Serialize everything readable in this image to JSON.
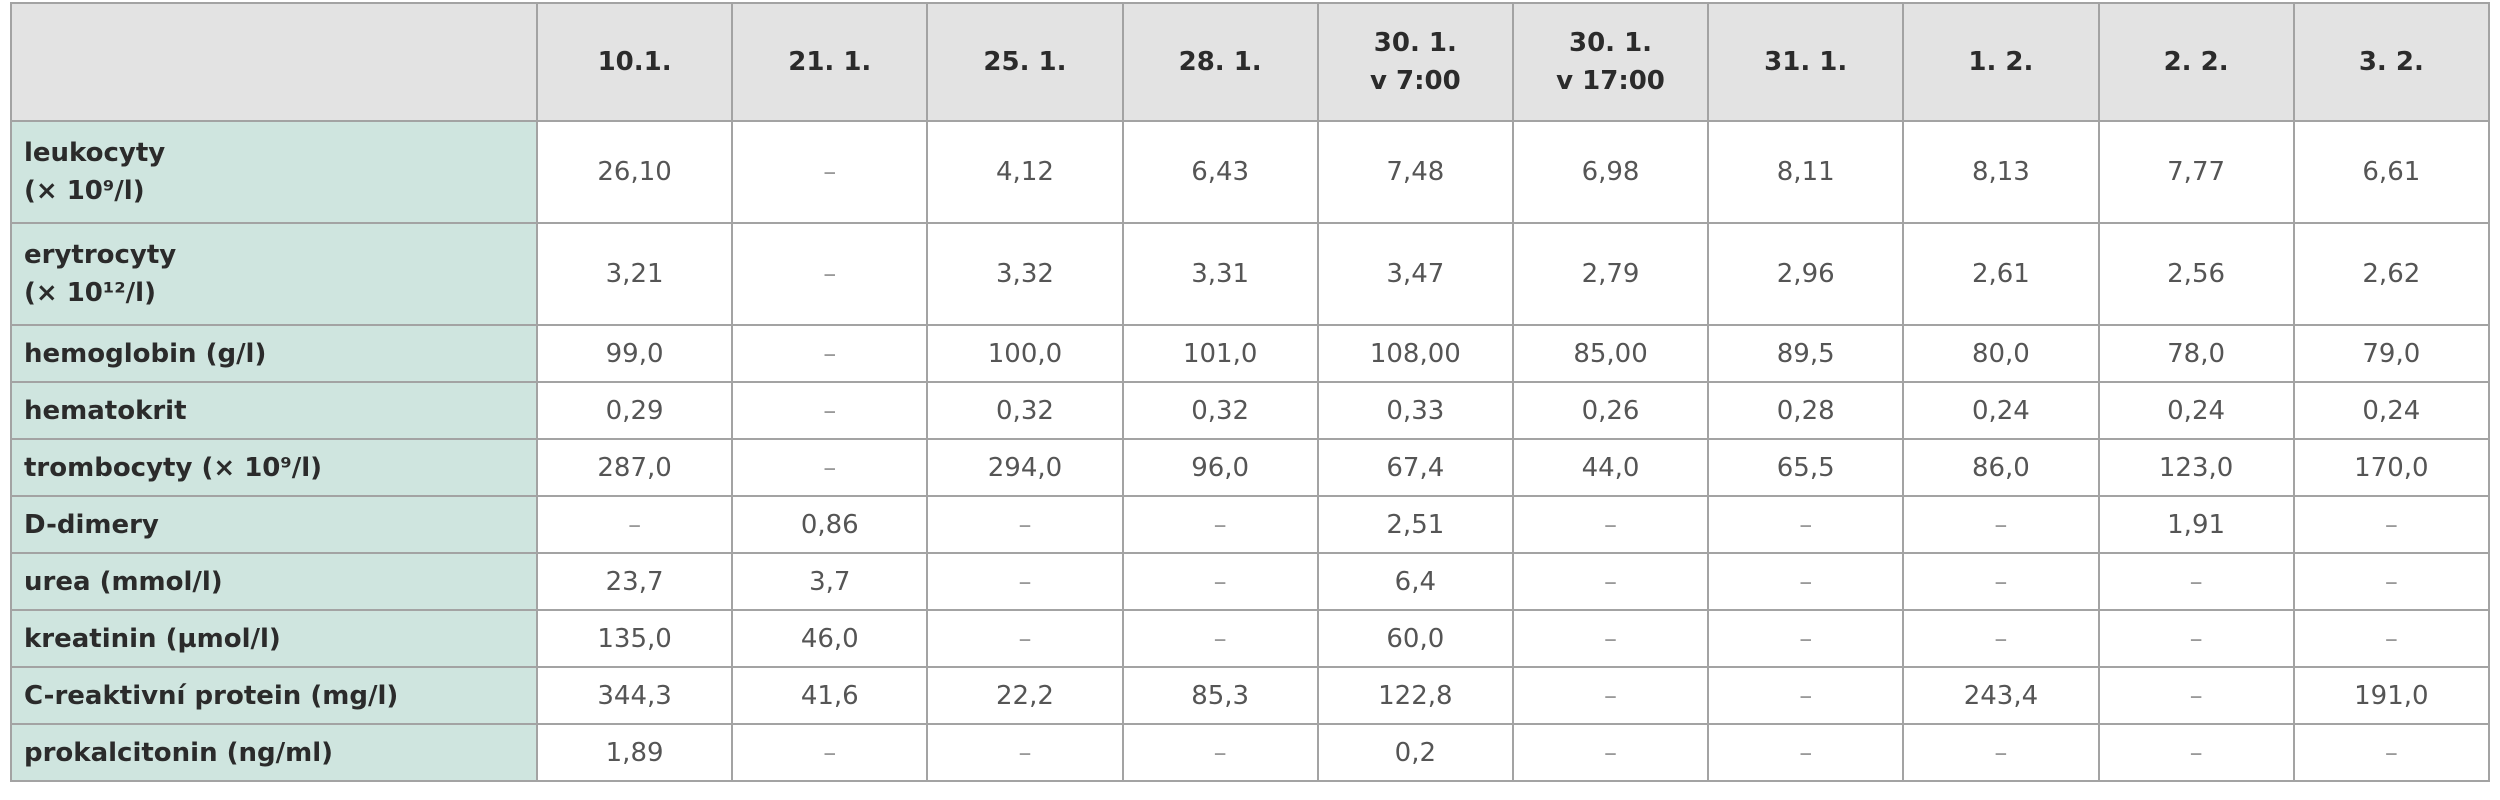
{
  "table": {
    "columns": [
      [
        "10.1."
      ],
      [
        "21. 1."
      ],
      [
        "25. 1."
      ],
      [
        "28. 1."
      ],
      [
        "30. 1.",
        "v 7:00"
      ],
      [
        "30. 1.",
        "v 17:00"
      ],
      [
        "31. 1."
      ],
      [
        "1. 2."
      ],
      [
        "2. 2."
      ],
      [
        "3. 2."
      ]
    ],
    "rows": [
      {
        "label": [
          "leukocyty",
          "(× 10⁹/l)"
        ],
        "cells": [
          "26,10",
          "–",
          "4,12",
          "6,43",
          "7,48",
          "6,98",
          "8,11",
          "8,13",
          "7,77",
          "6,61"
        ]
      },
      {
        "label": [
          "erytrocyty",
          "(× 10¹²/l)"
        ],
        "cells": [
          "3,21",
          "–",
          "3,32",
          "3,31",
          "3,47",
          "2,79",
          "2,96",
          "2,61",
          "2,56",
          "2,62"
        ]
      },
      {
        "label": [
          "hemoglobin (g/l)"
        ],
        "cells": [
          "99,0",
          "–",
          "100,0",
          "101,0",
          "108,00",
          "85,00",
          "89,5",
          "80,0",
          "78,0",
          "79,0"
        ]
      },
      {
        "label": [
          "hematokrit"
        ],
        "cells": [
          "0,29",
          "–",
          "0,32",
          "0,32",
          "0,33",
          "0,26",
          "0,28",
          "0,24",
          "0,24",
          "0,24"
        ]
      },
      {
        "label": [
          "trombocyty (× 10⁹/l)"
        ],
        "cells": [
          "287,0",
          "–",
          "294,0",
          "96,0",
          "67,4",
          "44,0",
          "65,5",
          "86,0",
          "123,0",
          "170,0"
        ]
      },
      {
        "label": [
          "D-dimery"
        ],
        "cells": [
          "–",
          "0,86",
          "–",
          "–",
          "2,51",
          "–",
          "–",
          "–",
          "1,91",
          "–"
        ]
      },
      {
        "label": [
          "urea (mmol/l)"
        ],
        "cells": [
          "23,7",
          "3,7",
          "–",
          "–",
          "6,4",
          "–",
          "–",
          "–",
          "–",
          "–"
        ]
      },
      {
        "label": [
          "kreatinin (µmol/l)"
        ],
        "cells": [
          "135,0",
          "46,0",
          "–",
          "–",
          "60,0",
          "–",
          "–",
          "–",
          "–",
          "–"
        ]
      },
      {
        "label": [
          "C-reaktivní protein (mg/l)"
        ],
        "cells": [
          "344,3",
          "41,6",
          "22,2",
          "85,3",
          "122,8",
          "–",
          "–",
          "243,4",
          "–",
          "191,0"
        ]
      },
      {
        "label": [
          "prokalcitonin (ng/ml)"
        ],
        "cells": [
          "1,89",
          "–",
          "–",
          "–",
          "0,2",
          "–",
          "–",
          "–",
          "–",
          "–"
        ]
      }
    ]
  }
}
